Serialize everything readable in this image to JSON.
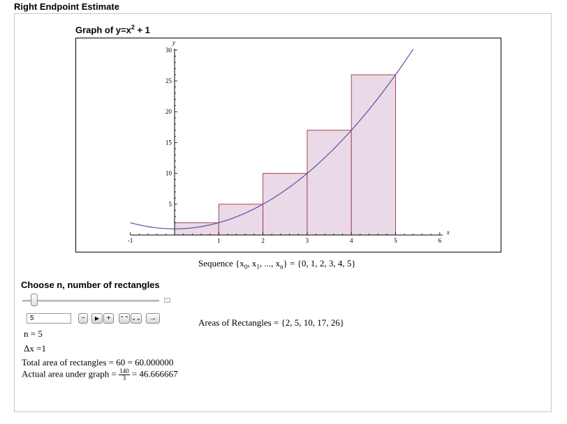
{
  "app": {
    "title": "Right Endpoint Estimate"
  },
  "graph": {
    "title_prefix": "Graph of y=x",
    "title_exponent": "2",
    "title_suffix": " + 1"
  },
  "chart_data": {
    "type": "line",
    "function": "x^2 + 1",
    "curve_x_range": [
      -1,
      5.4
    ],
    "rectangles": [
      {
        "x0": 0,
        "x1": 1,
        "height": 2
      },
      {
        "x0": 1,
        "x1": 2,
        "height": 5
      },
      {
        "x0": 2,
        "x1": 3,
        "height": 10
      },
      {
        "x0": 3,
        "x1": 4,
        "height": 17
      },
      {
        "x0": 4,
        "x1": 5,
        "height": 26
      }
    ],
    "xlim": [
      -1,
      6
    ],
    "ylim": [
      0,
      30
    ],
    "x_ticks": [
      "-1",
      "1",
      "2",
      "3",
      "4",
      "5",
      "6"
    ],
    "y_ticks": [
      "5",
      "10",
      "15",
      "20",
      "25",
      "30"
    ],
    "xlabel": "x",
    "ylabel": "y",
    "colors": {
      "curve": "#5b4fa8",
      "rect_fill": "#ead9e6",
      "rect_stroke": "#9e3344"
    }
  },
  "sequence": {
    "prefix": "Sequence",
    "open": "{x",
    "sub0": "0",
    "mid": ", x",
    "sub1": "1",
    "dots": ", ..., x",
    "subn": "n",
    "close": "} = {0, 1, 2, 3, 4, 5}"
  },
  "controls": {
    "label": "Choose n, number of rectangles",
    "slider_fraction": 0.05,
    "n_value": "5",
    "buttons": {
      "minus": "−",
      "play": "▶",
      "plus": "+",
      "faster": "⌃⌃",
      "slower": "⌄⌄",
      "direction": "→"
    }
  },
  "results": {
    "n": "n = 5",
    "dx": "Δx =1",
    "total": "Total area of rectangles = 60 = 60.000000",
    "actual_prefix": "Actual area under graph =",
    "actual_num": "140",
    "actual_den": "3",
    "actual_suffix": "= 46.666667",
    "areas": "Areas of Rectangles = {2, 5, 10, 17, 26}"
  }
}
